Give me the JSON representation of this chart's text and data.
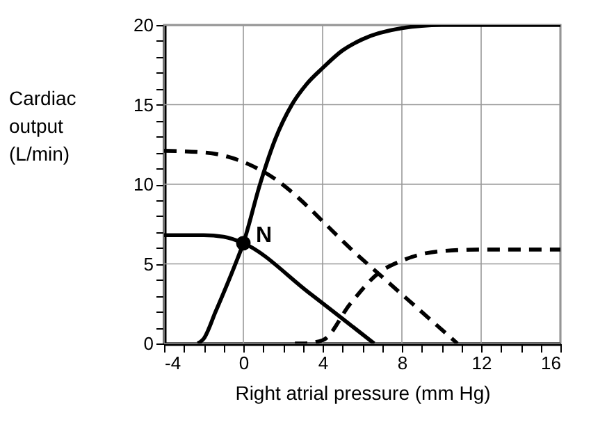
{
  "chart_data": {
    "type": "line",
    "xlabel": "Right atrial pressure (mm Hg)",
    "ylabel": "Cardiac output (L/min)",
    "xlim": [
      -4,
      16
    ],
    "ylim": [
      0,
      20
    ],
    "xticks": [
      -4,
      {
        "value": -3,
        "label": null
      },
      {
        "value": -2,
        "label": null
      },
      {
        "value": -1,
        "label": null
      },
      0,
      {
        "value": 1,
        "label": null
      },
      {
        "value": 2,
        "label": null
      },
      {
        "value": 3,
        "label": null
      },
      4,
      {
        "value": 5,
        "label": null
      },
      {
        "value": 6,
        "label": null
      },
      {
        "value": 7,
        "label": null
      },
      8,
      {
        "value": 9,
        "label": null
      },
      {
        "value": 10,
        "label": null
      },
      {
        "value": 11,
        "label": null
      },
      12,
      {
        "value": 13,
        "label": null
      },
      {
        "value": 14,
        "label": null
      },
      {
        "value": 15,
        "label": null
      },
      16
    ],
    "yticks": [
      0,
      {
        "value": 1,
        "label": null
      },
      {
        "value": 2,
        "label": null
      },
      {
        "value": 3,
        "label": null
      },
      {
        "value": 4,
        "label": null
      },
      5,
      {
        "value": 6,
        "label": null
      },
      {
        "value": 7,
        "label": null
      },
      {
        "value": 8,
        "label": null
      },
      {
        "value": 9,
        "label": null
      },
      10,
      {
        "value": 11,
        "label": null
      },
      {
        "value": 12,
        "label": null
      },
      {
        "value": 13,
        "label": null
      },
      {
        "value": 14,
        "label": null
      },
      15,
      {
        "value": 16,
        "label": null
      },
      {
        "value": 17,
        "label": null
      },
      {
        "value": 18,
        "label": null
      },
      {
        "value": 19,
        "label": null
      },
      20
    ],
    "grid": true,
    "series": [
      {
        "color": "#000000",
        "line_style": "solid",
        "x": [
          -2.3,
          -2,
          -1.4,
          -0.4,
          0,
          0.84,
          1.6,
          2.45,
          3.2,
          4,
          5,
          6,
          8,
          10,
          16
        ],
        "values": [
          0,
          0.3,
          2,
          5,
          6.3,
          10,
          12.8,
          15,
          16.3,
          17.3,
          18.4,
          19.1,
          19.8,
          20,
          20
        ]
      },
      {
        "color": "#000000",
        "line_style": "solid",
        "x": [
          -4,
          -2,
          -1,
          0,
          3.3,
          6.6
        ],
        "values": [
          6.8,
          6.8,
          6.7,
          6.3,
          3.2,
          0
        ]
      },
      {
        "color": "#000000",
        "line_style": "dashed",
        "x": [
          -4,
          -2,
          -1,
          0,
          1,
          5.9,
          10.8
        ],
        "values": [
          12.1,
          12,
          11.8,
          11.4,
          10.8,
          5.4,
          0
        ]
      },
      {
        "color": "#000000",
        "line_style": "dashed",
        "x": [
          2.6,
          3,
          4,
          5.4,
          6.8,
          8,
          10,
          12,
          16
        ],
        "values": [
          0,
          0,
          0.2,
          2.5,
          4.4,
          5.2,
          5.8,
          5.9,
          5.9
        ]
      },
      {
        "type": "scatter",
        "marker": "circle",
        "color": "#000000",
        "x": [
          0
        ],
        "values": [
          6.3
        ]
      }
    ],
    "annotations": [
      {
        "text": "N",
        "x": 0,
        "y": 6.3
      }
    ]
  }
}
